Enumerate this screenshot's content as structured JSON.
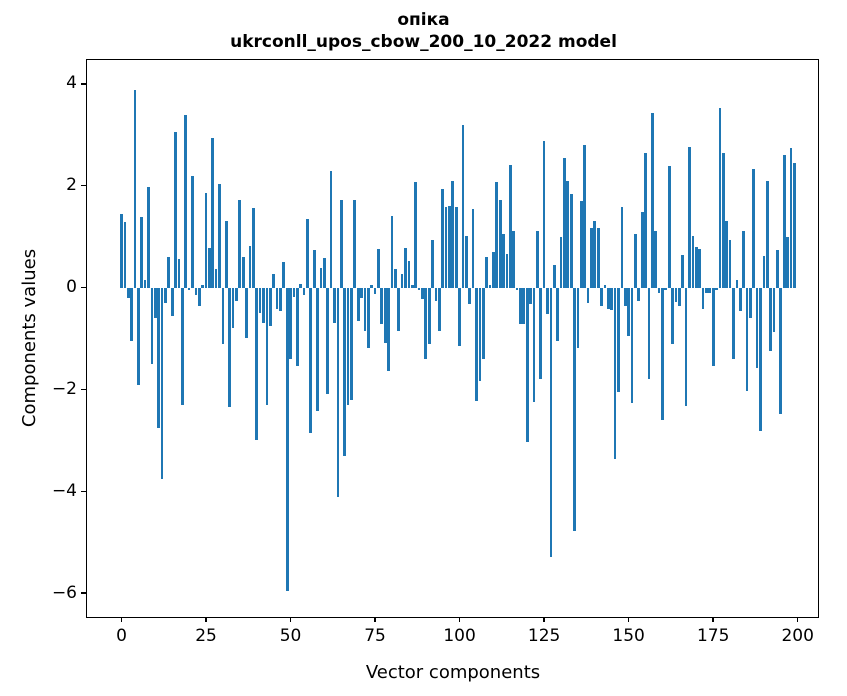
{
  "title": {
    "line1": "опіка",
    "line2": "ukrconll_upos_cbow_200_10_2022 model"
  },
  "chart_data": {
    "type": "bar",
    "title": "опіка",
    "subtitle": "ukrconll_upos_cbow_200_10_2022 model",
    "xlabel": "Vector components",
    "ylabel": "Components values",
    "legend": null,
    "grid": false,
    "bar_color": "#1f77b4",
    "spine_color": "#000000",
    "background_color": "#ffffff",
    "n_components": 200,
    "xlim": [
      -10.2,
      206.0
    ],
    "ylim": [
      -6.47,
      4.47
    ],
    "x_ticks": [
      0,
      25,
      50,
      75,
      100,
      125,
      150,
      175,
      200
    ],
    "x_tick_labels": [
      "0",
      "25",
      "50",
      "75",
      "100",
      "125",
      "150",
      "175",
      "200"
    ],
    "y_ticks": [
      4,
      2,
      0,
      -2,
      -4,
      -6
    ],
    "y_tick_labels": [
      "4",
      "2",
      "0",
      "−2",
      "−4",
      "−6"
    ],
    "values": [
      1.44,
      1.28,
      -0.2,
      -1.05,
      3.88,
      -1.92,
      1.39,
      0.15,
      1.97,
      -1.5,
      -0.6,
      -2.75,
      -3.76,
      -0.3,
      0.6,
      -0.55,
      3.05,
      0.57,
      -2.3,
      3.38,
      -0.05,
      2.2,
      -0.15,
      -0.36,
      0.05,
      1.85,
      0.78,
      2.93,
      0.36,
      2.04,
      -1.1,
      1.3,
      -2.35,
      -0.8,
      -0.26,
      1.73,
      0.6,
      -1.0,
      0.82,
      1.57,
      -3.0,
      -0.5,
      -0.7,
      -2.3,
      -0.75,
      0.26,
      -0.42,
      -0.46,
      0.51,
      -5.95,
      -1.41,
      -0.18,
      -1.54,
      0.08,
      -0.15,
      1.35,
      -2.85,
      0.73,
      -2.43,
      0.38,
      0.58,
      -2.1,
      2.29,
      -0.69,
      -4.12,
      1.73,
      -3.3,
      -2.31,
      -2.2,
      1.73,
      -0.65,
      -0.2,
      -0.85,
      -1.18,
      0.05,
      -0.12,
      0.75,
      -0.72,
      -1.08,
      -1.63,
      1.41,
      0.36,
      -0.85,
      0.26,
      0.78,
      0.52,
      0.05,
      2.08,
      -0.05,
      -0.23,
      -1.41,
      -1.11,
      0.93,
      -0.26,
      -0.85,
      1.93,
      1.58,
      1.6,
      2.1,
      1.58,
      -1.15,
      3.2,
      1.01,
      -0.33,
      1.54,
      -2.22,
      -1.83,
      -1.41,
      0.6,
      0.05,
      0.69,
      2.08,
      1.73,
      1.05,
      0.65,
      2.41,
      1.12,
      -0.05,
      -0.72,
      -0.72,
      -3.03,
      -0.33,
      -2.25,
      1.11,
      -1.8,
      2.88,
      -0.52,
      -5.3,
      0.44,
      -1.05,
      1.0,
      2.55,
      2.1,
      1.84,
      -4.78,
      -1.18,
      1.71,
      2.8,
      -0.3,
      1.18,
      1.31,
      1.18,
      -0.36,
      0.05,
      -0.42,
      -0.44,
      -3.37,
      -2.05,
      1.58,
      -0.36,
      -0.95,
      -2.26,
      1.05,
      -0.26,
      1.49,
      2.65,
      -1.8,
      3.42,
      1.11,
      -0.1,
      -2.61,
      -0.05,
      2.39,
      -1.11,
      -0.29,
      -0.36,
      0.64,
      -2.32,
      2.76,
      1.01,
      0.8,
      0.75,
      -0.42,
      -0.1,
      -0.1,
      -1.54,
      -0.05,
      3.53,
      2.65,
      1.31,
      0.93,
      -1.41,
      0.15,
      -0.46,
      1.12,
      -2.03,
      -0.59,
      2.33,
      -1.57,
      -2.81,
      0.62,
      2.09,
      -1.24,
      -0.88,
      0.73,
      -2.48,
      2.6,
      1.0,
      2.75,
      2.45
    ]
  }
}
